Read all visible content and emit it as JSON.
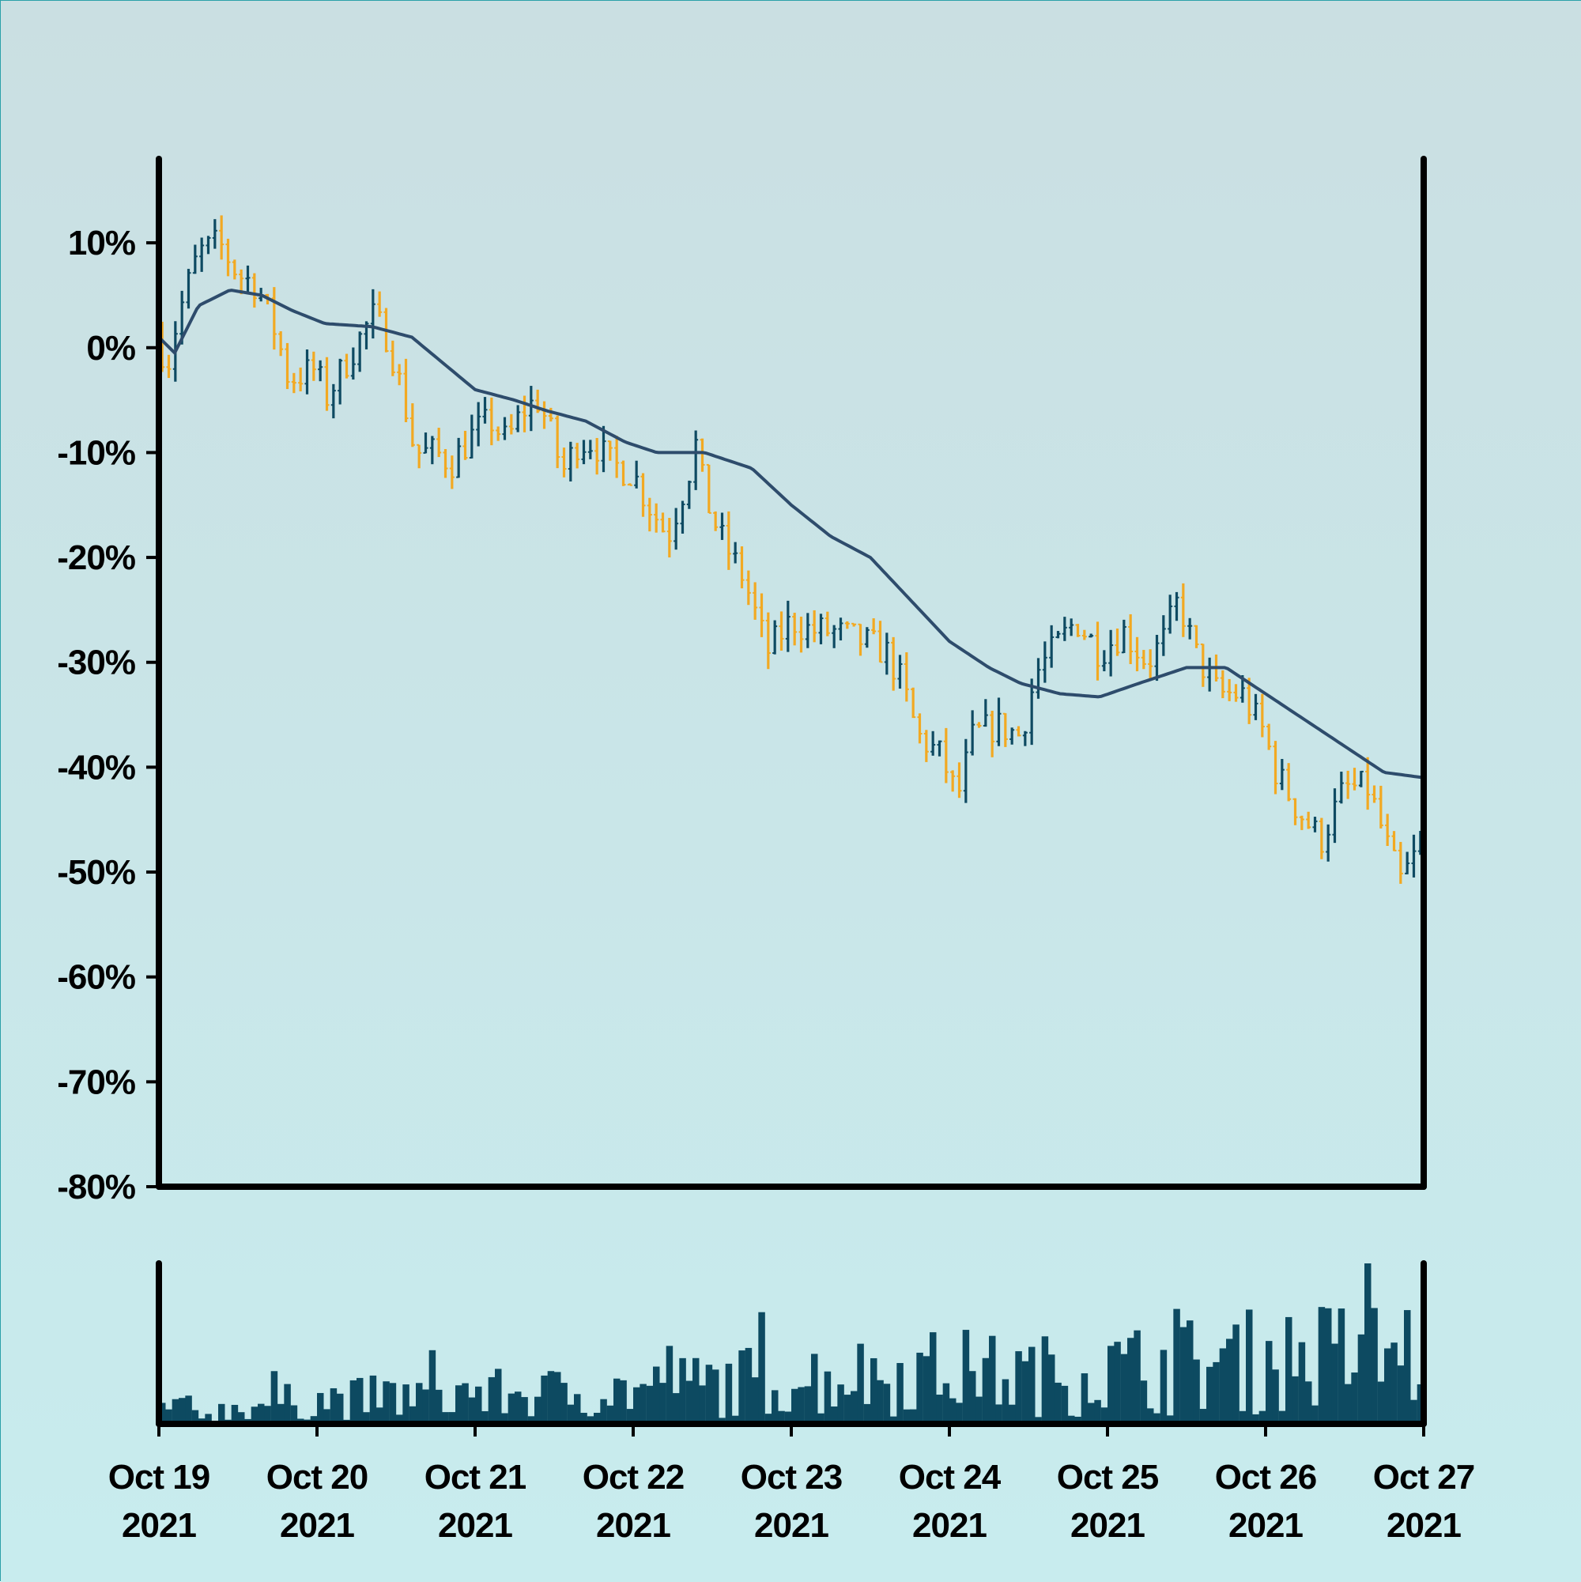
{
  "colors": {
    "background_top": "#cadfe2",
    "background_bottom": "#c8ecee",
    "up_bar": "#0e4a62",
    "down_bar": "#f2a922",
    "moving_average": "#2e4c6c",
    "volume": "#0d4a61",
    "axis": "#000000"
  },
  "chart_data": {
    "type": "ohlc",
    "price_panel": {
      "ylim": [
        -80,
        18
      ],
      "yticks": [
        10,
        0,
        -10,
        -20,
        -30,
        -40,
        -50,
        -60,
        -70,
        -80
      ],
      "ytick_labels": [
        "10%",
        "0%",
        "-10%",
        "-20%",
        "-30%",
        "-40%",
        "-50%",
        "-60%",
        "-70%",
        "-80%"
      ],
      "grid": false,
      "close_anchors": [
        [
          0,
          1
        ],
        [
          0.05,
          -2
        ],
        [
          0.12,
          3
        ],
        [
          0.25,
          9
        ],
        [
          0.38,
          10
        ],
        [
          0.5,
          7
        ],
        [
          0.62,
          6
        ],
        [
          0.75,
          1
        ],
        [
          0.82,
          -3
        ],
        [
          1.0,
          -2
        ],
        [
          1.05,
          -5
        ],
        [
          1.2,
          -1
        ],
        [
          1.35,
          3
        ],
        [
          1.45,
          1
        ],
        [
          1.55,
          -5
        ],
        [
          1.62,
          -10
        ],
        [
          1.75,
          -10
        ],
        [
          1.85,
          -11
        ],
        [
          2.0,
          -8
        ],
        [
          2.1,
          -7
        ],
        [
          2.2,
          -9
        ],
        [
          2.3,
          -6
        ],
        [
          2.4,
          -5
        ],
        [
          2.5,
          -9
        ],
        [
          2.55,
          -12
        ],
        [
          2.65,
          -9
        ],
        [
          2.75,
          -9
        ],
        [
          2.85,
          -11
        ],
        [
          3.0,
          -12
        ],
        [
          3.1,
          -15
        ],
        [
          3.22,
          -18
        ],
        [
          3.35,
          -12
        ],
        [
          3.4,
          -9
        ],
        [
          3.45,
          -14
        ],
        [
          3.55,
          -18
        ],
        [
          3.7,
          -22
        ],
        [
          3.85,
          -29
        ],
        [
          4.0,
          -26
        ],
        [
          4.12,
          -27
        ],
        [
          4.25,
          -27
        ],
        [
          4.45,
          -28
        ],
        [
          4.6,
          -29
        ],
        [
          4.7,
          -32
        ],
        [
          4.8,
          -37
        ],
        [
          4.95,
          -39
        ],
        [
          5.05,
          -43
        ],
        [
          5.15,
          -37
        ],
        [
          5.3,
          -36
        ],
        [
          5.45,
          -37
        ],
        [
          5.55,
          -31
        ],
        [
          5.65,
          -29
        ],
        [
          5.8,
          -26
        ],
        [
          5.95,
          -29
        ],
        [
          6.1,
          -27
        ],
        [
          6.25,
          -30
        ],
        [
          6.35,
          -28
        ],
        [
          6.45,
          -24
        ],
        [
          6.55,
          -29
        ],
        [
          6.7,
          -33
        ],
        [
          6.85,
          -33
        ],
        [
          7.0,
          -37
        ],
        [
          7.05,
          -40
        ],
        [
          7.2,
          -44
        ],
        [
          7.35,
          -47
        ],
        [
          7.5,
          -42
        ],
        [
          7.65,
          -42
        ],
        [
          7.78,
          -48
        ],
        [
          7.85,
          -51
        ],
        [
          8.0,
          -47
        ]
      ],
      "moving_average_anchors": [
        [
          0,
          1
        ],
        [
          0.1,
          -0.5
        ],
        [
          0.25,
          4
        ],
        [
          0.45,
          5.5
        ],
        [
          0.65,
          5
        ],
        [
          0.85,
          3.5
        ],
        [
          1.05,
          2.3
        ],
        [
          1.35,
          2
        ],
        [
          1.6,
          1
        ],
        [
          1.8,
          -1.5
        ],
        [
          2.0,
          -4
        ],
        [
          2.25,
          -5
        ],
        [
          2.45,
          -6
        ],
        [
          2.7,
          -7
        ],
        [
          2.95,
          -9
        ],
        [
          3.15,
          -10
        ],
        [
          3.45,
          -10
        ],
        [
          3.75,
          -11.5
        ],
        [
          4.0,
          -15
        ],
        [
          4.25,
          -18
        ],
        [
          4.5,
          -20
        ],
        [
          4.75,
          -24
        ],
        [
          5.0,
          -28
        ],
        [
          5.25,
          -30.5
        ],
        [
          5.45,
          -32
        ],
        [
          5.7,
          -33
        ],
        [
          5.95,
          -33.3
        ],
        [
          6.2,
          -32
        ],
        [
          6.5,
          -30.5
        ],
        [
          6.75,
          -30.5
        ],
        [
          7.0,
          -33
        ],
        [
          7.25,
          -35.5
        ],
        [
          7.5,
          -38
        ],
        [
          7.75,
          -40.5
        ],
        [
          8.0,
          -41
        ]
      ]
    },
    "volume_panel": {
      "anchors": [
        [
          0,
          1.0
        ],
        [
          0.3,
          0.6
        ],
        [
          0.6,
          1.1
        ],
        [
          1.0,
          1.35
        ],
        [
          1.5,
          1.55
        ],
        [
          2.0,
          1.65
        ],
        [
          2.5,
          1.75
        ],
        [
          3.0,
          1.9
        ],
        [
          3.5,
          2.3
        ],
        [
          4.0,
          2.55
        ],
        [
          4.5,
          2.75
        ],
        [
          5.0,
          3.0
        ],
        [
          5.5,
          2.7
        ],
        [
          6.0,
          3.0
        ],
        [
          6.5,
          3.3
        ],
        [
          7.0,
          3.6
        ],
        [
          7.5,
          3.9
        ],
        [
          8.0,
          4.1
        ]
      ],
      "max": 10
    },
    "x_axis": {
      "range_days": [
        0,
        8
      ],
      "tick_labels": [
        {
          "day": 0,
          "line1": "Oct 19",
          "line2": "2021"
        },
        {
          "day": 1,
          "line1": "Oct 20",
          "line2": "2021"
        },
        {
          "day": 2,
          "line1": "Oct 21",
          "line2": "2021"
        },
        {
          "day": 3,
          "line1": "Oct 22",
          "line2": "2021"
        },
        {
          "day": 4,
          "line1": "Oct 23",
          "line2": "2021"
        },
        {
          "day": 5,
          "line1": "Oct 24",
          "line2": "2021"
        },
        {
          "day": 6,
          "line1": "Oct 25",
          "line2": "2021"
        },
        {
          "day": 7,
          "line1": "Oct 26",
          "line2": "2021"
        },
        {
          "day": 8,
          "line1": "Oct 27",
          "line2": "2021"
        }
      ]
    },
    "bars_per_day": 24
  }
}
